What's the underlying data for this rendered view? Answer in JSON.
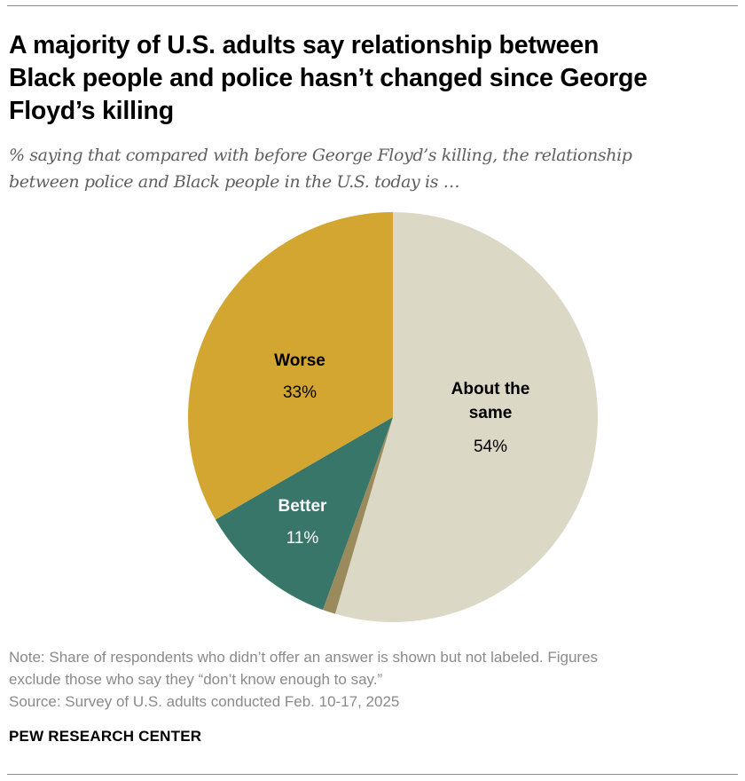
{
  "header": {
    "title_lines": [
      "A majority of U.S. adults say relationship between",
      "Black people and police hasn’t changed since George",
      "Floyd’s killing"
    ],
    "subtitle_lines": [
      "% saying that compared with before George Floyd’s killing, the relationship",
      "between police and Black people in the U.S. today is …"
    ]
  },
  "chart_data": {
    "type": "pie",
    "start": "12 o'clock",
    "direction": "clockwise",
    "slices": [
      {
        "key": "same",
        "label_lines": [
          "About the",
          "same"
        ],
        "value": 54,
        "value_label": "54%",
        "color": "#dcd8c6",
        "label_color": "#000000"
      },
      {
        "key": "no-answer",
        "label_lines": [],
        "value": 1,
        "value_label": "",
        "color": "#9a8a5c",
        "label_color": "#000000"
      },
      {
        "key": "better",
        "label_lines": [
          "Better"
        ],
        "value": 11,
        "value_label": "11%",
        "color": "#377669",
        "label_color": "#ffffff"
      },
      {
        "key": "worse",
        "label_lines": [
          "Worse"
        ],
        "value": 33,
        "value_label": "33%",
        "color": "#d2a630",
        "label_color": "#000000"
      }
    ]
  },
  "footer": {
    "note_lines": [
      "Note: Share of respondents who didn’t offer an answer is shown but not labeled. Figures",
      "exclude those who say they “don’t know enough to say.”"
    ],
    "source": "Source: Survey of U.S. adults conducted Feb. 10-17, 2025",
    "brand": "PEW RESEARCH CENTER"
  }
}
